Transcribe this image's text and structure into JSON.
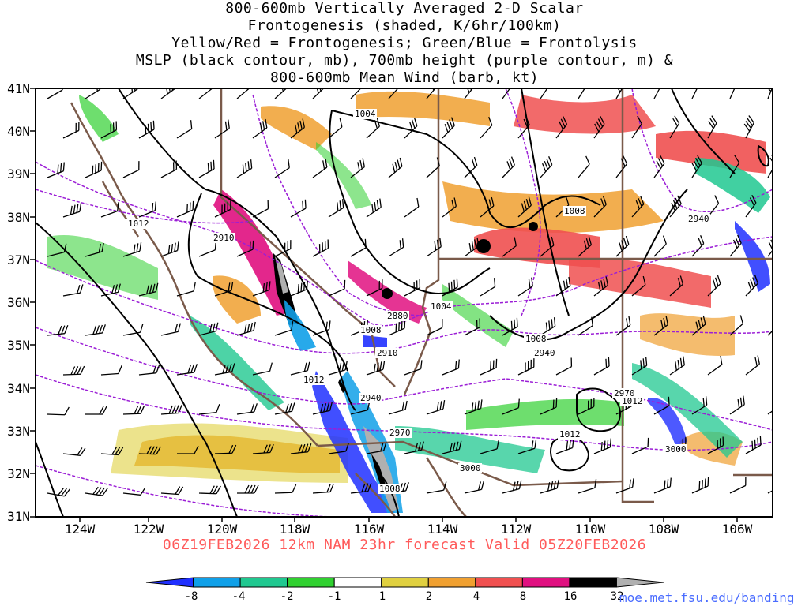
{
  "title_lines": [
    "800-600mb Vertically Averaged 2-D Scalar",
    "Frontogenesis (shaded, K/6hr/100km)",
    "Yellow/Red = Frontogenesis;  Green/Blue = Frontolysis",
    "MSLP (black contour, mb), 700mb height (purple contour, m) &",
    "800-600mb Mean Wind (barb, kt)"
  ],
  "forecast_label": "06Z19FEB2026 12km NAM 23hr forecast Valid 05Z20FEB2026",
  "source_url": "moe.met.fsu.edu/banding",
  "lat_labels": [
    "41N",
    "40N",
    "39N",
    "38N",
    "37N",
    "36N",
    "35N",
    "34N",
    "33N",
    "32N",
    "31N"
  ],
  "lon_labels": [
    "124W",
    "122W",
    "120W",
    "118W",
    "116W",
    "114W",
    "112W",
    "110W",
    "108W",
    "106W"
  ],
  "contour_labels": {
    "mslp": [
      "1004",
      "1008",
      "1004",
      "1008",
      "1012",
      "1008",
      "1012",
      "1008",
      "1012",
      "1012"
    ],
    "height": [
      "2910",
      "2880",
      "2910",
      "2940",
      "2970",
      "3000",
      "2940",
      "2940",
      "2970",
      "3000"
    ]
  },
  "colorbar_labels": [
    "-8",
    "-4",
    "-2",
    "-1",
    "1",
    "2",
    "4",
    "8",
    "16",
    "32"
  ],
  "colorbar_colors": [
    "#2030ff",
    "#10a0e8",
    "#20c890",
    "#30d030",
    "#ffffff",
    "#e0d040",
    "#f0a030",
    "#f05050",
    "#e01080",
    "#000000",
    "#b0b0b0"
  ],
  "colors": {
    "mslp_contour": "#000000",
    "height_contour": "#9b1ed6",
    "borders": "#7a5a4a",
    "barbs": "#000000"
  }
}
